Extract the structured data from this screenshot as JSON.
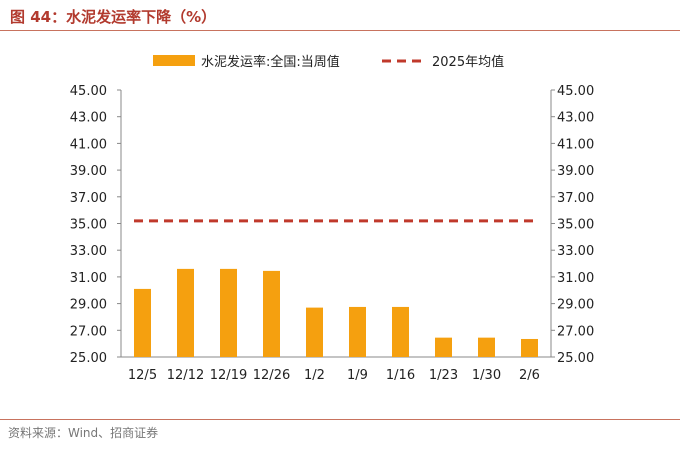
{
  "figure": {
    "title": "图 44：水泥发运率下降（%）",
    "source": "资料来源：Wind、招商证券"
  },
  "colors": {
    "bar": "#F5A00F",
    "avg_line": "#C0392B",
    "title": "#B23A2E",
    "rule": "#C8735E",
    "axis": "#888888"
  },
  "chart_data": {
    "type": "bar",
    "categories": [
      "12/5",
      "12/12",
      "12/19",
      "12/26",
      "1/2",
      "1/9",
      "1/16",
      "1/23",
      "1/30",
      "2/6"
    ],
    "series": [
      {
        "name": "水泥发运率:全国:当周值",
        "type": "bar",
        "values": [
          30.1,
          31.6,
          31.6,
          31.45,
          28.7,
          28.75,
          28.75,
          26.45,
          26.45,
          26.35
        ]
      },
      {
        "name": "2025年均值",
        "type": "dashed-line",
        "values": [
          35.2,
          35.2,
          35.2,
          35.2,
          35.2,
          35.2,
          35.2,
          35.2,
          35.2,
          35.2
        ]
      }
    ],
    "ylim": [
      25,
      45
    ],
    "yticks": [
      "25.00",
      "27.00",
      "29.00",
      "31.00",
      "33.00",
      "35.00",
      "37.00",
      "39.00",
      "41.00",
      "43.00",
      "45.00"
    ],
    "y_axes": "left and right, identical scale",
    "legend_position": "top-center",
    "grid": false
  }
}
